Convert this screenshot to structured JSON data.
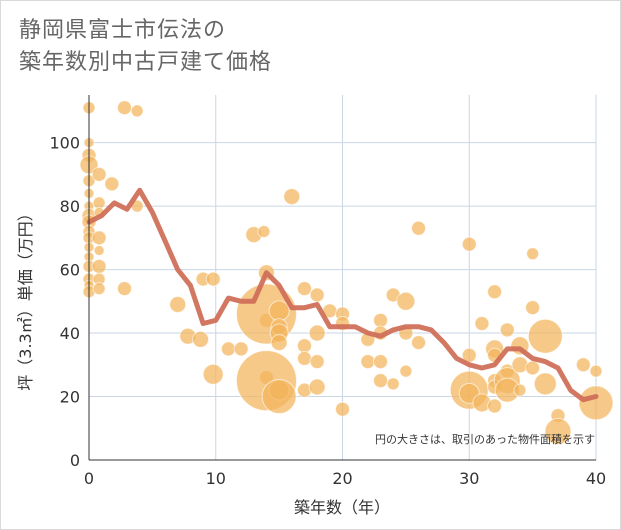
{
  "title_line1": "静岡県富士市伝法の",
  "title_line2": "築年数別中古戸建て価格",
  "chart_data": {
    "type": "scatter",
    "xlabel": "築年数（年）",
    "ylabel": "坪（3.3㎡）単価（万円）",
    "xlim": [
      0,
      40
    ],
    "ylim": [
      0,
      115
    ],
    "xticks": [
      "0",
      "10",
      "20",
      "30",
      "40"
    ],
    "yticks": [
      "0",
      "20",
      "40",
      "60",
      "80",
      "100"
    ],
    "grid": true,
    "note": "円の大きさは、取引のあった物件面積を示す",
    "colors": {
      "bubble": "#f2b45c",
      "line": "#d0705a",
      "grid": "#c9d6e6"
    },
    "bubbles": [
      [
        0,
        111,
        6
      ],
      [
        0,
        100,
        5
      ],
      [
        0,
        96,
        7
      ],
      [
        0,
        93,
        9
      ],
      [
        0,
        88,
        6
      ],
      [
        0,
        84,
        5
      ],
      [
        0,
        80,
        5
      ],
      [
        0,
        77,
        7
      ],
      [
        0,
        75,
        7
      ],
      [
        0,
        72,
        6
      ],
      [
        0,
        70,
        6
      ],
      [
        0,
        67,
        5
      ],
      [
        0,
        64,
        5
      ],
      [
        0,
        61,
        6
      ],
      [
        0,
        57,
        6
      ],
      [
        0,
        55,
        5
      ],
      [
        0,
        53,
        6
      ],
      [
        0.8,
        90,
        7
      ],
      [
        0.8,
        81,
        6
      ],
      [
        0.8,
        78,
        5
      ],
      [
        0.8,
        70,
        7
      ],
      [
        0.8,
        66,
        5
      ],
      [
        0.8,
        61,
        7
      ],
      [
        0.8,
        57,
        6
      ],
      [
        0.8,
        54,
        6
      ],
      [
        1.8,
        87,
        7
      ],
      [
        2.8,
        111,
        7
      ],
      [
        2.8,
        54,
        7
      ],
      [
        3.8,
        110,
        6
      ],
      [
        3.8,
        80,
        6
      ],
      [
        7,
        49,
        8
      ],
      [
        7.8,
        39,
        8
      ],
      [
        8.8,
        38,
        8
      ],
      [
        9,
        57,
        7
      ],
      [
        9.8,
        57,
        7
      ],
      [
        9.8,
        27,
        10
      ],
      [
        11,
        35,
        7
      ],
      [
        12,
        35,
        7
      ],
      [
        13,
        71,
        8
      ],
      [
        13.8,
        72,
        6
      ],
      [
        14,
        59,
        8
      ],
      [
        14,
        44,
        7
      ],
      [
        14,
        26,
        7
      ],
      [
        14,
        46,
        30
      ],
      [
        14,
        25,
        30
      ],
      [
        15,
        47,
        10
      ],
      [
        15,
        42,
        8
      ],
      [
        15,
        40,
        9
      ],
      [
        15,
        37,
        8
      ],
      [
        15,
        22,
        10
      ],
      [
        15,
        20,
        17
      ],
      [
        16,
        83,
        8
      ],
      [
        17,
        54,
        7
      ],
      [
        17,
        36,
        7
      ],
      [
        17,
        32,
        7
      ],
      [
        17,
        22,
        7
      ],
      [
        18,
        52,
        7
      ],
      [
        18,
        40,
        8
      ],
      [
        18,
        31,
        7
      ],
      [
        18,
        23,
        8
      ],
      [
        19,
        47,
        7
      ],
      [
        20,
        46,
        7
      ],
      [
        20,
        43,
        7
      ],
      [
        20,
        16,
        7
      ],
      [
        22,
        38,
        7
      ],
      [
        22,
        31,
        7
      ],
      [
        23,
        44,
        7
      ],
      [
        23,
        40,
        7
      ],
      [
        23,
        31,
        7
      ],
      [
        23,
        25,
        7
      ],
      [
        24,
        52,
        7
      ],
      [
        24,
        24,
        6
      ],
      [
        25,
        50,
        9
      ],
      [
        25,
        40,
        7
      ],
      [
        25,
        28,
        6
      ],
      [
        26,
        73,
        7
      ],
      [
        26,
        37,
        7
      ],
      [
        30,
        68,
        7
      ],
      [
        30,
        33,
        7
      ],
      [
        30,
        22,
        19
      ],
      [
        30,
        21,
        10
      ],
      [
        31,
        43,
        7
      ],
      [
        31,
        18,
        9
      ],
      [
        32,
        53,
        7
      ],
      [
        32,
        35,
        9
      ],
      [
        32,
        33,
        7
      ],
      [
        32,
        25,
        7
      ],
      [
        32,
        23,
        7
      ],
      [
        32,
        17,
        7
      ],
      [
        33,
        41,
        7
      ],
      [
        33,
        28,
        7
      ],
      [
        33,
        25,
        13
      ],
      [
        33,
        22,
        12
      ],
      [
        34,
        36,
        9
      ],
      [
        34,
        30,
        8
      ],
      [
        34,
        22,
        6
      ],
      [
        35,
        65,
        6
      ],
      [
        35,
        48,
        7
      ],
      [
        35,
        29,
        7
      ],
      [
        36,
        39,
        17
      ],
      [
        36,
        24,
        11
      ],
      [
        37,
        14,
        7
      ],
      [
        37,
        9,
        13
      ],
      [
        39,
        30,
        7
      ],
      [
        40,
        28,
        6
      ],
      [
        40,
        18,
        17
      ]
    ],
    "line": [
      [
        0,
        75
      ],
      [
        1,
        77
      ],
      [
        2,
        81
      ],
      [
        3,
        79
      ],
      [
        4,
        85
      ],
      [
        5,
        78
      ],
      [
        6,
        69
      ],
      [
        7,
        60
      ],
      [
        8,
        55
      ],
      [
        9,
        43
      ],
      [
        10,
        44
      ],
      [
        11,
        51
      ],
      [
        12,
        50
      ],
      [
        13,
        50
      ],
      [
        14,
        59
      ],
      [
        15,
        55
      ],
      [
        16,
        48
      ],
      [
        17,
        48
      ],
      [
        18,
        49
      ],
      [
        19,
        42
      ],
      [
        20,
        42
      ],
      [
        21,
        42
      ],
      [
        22,
        40
      ],
      [
        23,
        39
      ],
      [
        24,
        41
      ],
      [
        25,
        42
      ],
      [
        26,
        42
      ],
      [
        27,
        41
      ],
      [
        28,
        37
      ],
      [
        29,
        32
      ],
      [
        30,
        30
      ],
      [
        31,
        29
      ],
      [
        32,
        30
      ],
      [
        33,
        35
      ],
      [
        34,
        35
      ],
      [
        35,
        32
      ],
      [
        36,
        31
      ],
      [
        37,
        29
      ],
      [
        38,
        22
      ],
      [
        39,
        19
      ],
      [
        40,
        20
      ]
    ]
  }
}
